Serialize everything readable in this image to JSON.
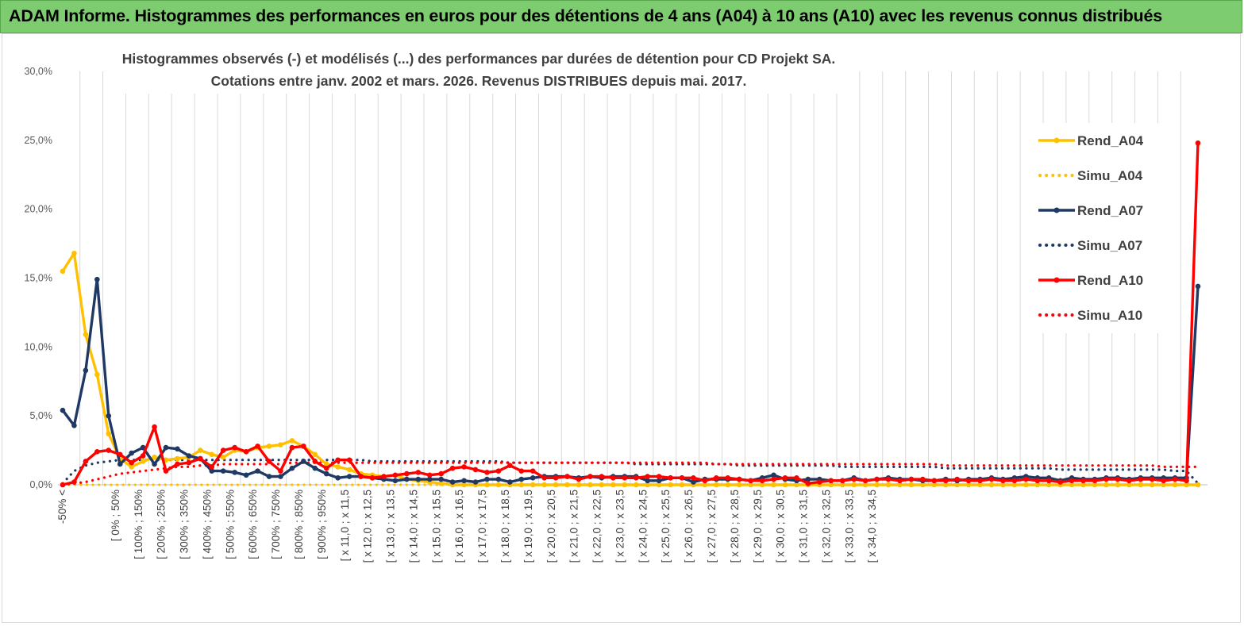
{
  "banner": {
    "title": "ADAM Informe. Histogrammes des performances en euros pour des détentions de 4 ans (A04) à 10 ans (A10) avec les revenus connus distribués"
  },
  "colors": {
    "banner_bg": "#7dcc70",
    "A04": "#ffc000",
    "A07": "#1f3864",
    "A10": "#ff0000",
    "grid": "#d9d9d9"
  },
  "chart_data": {
    "type": "line",
    "title_line1": "Histogrammes observés (-) et modélisés (...) des performances par durées de détention pour CD Projekt SA.",
    "title_line2": "Cotations entre janv. 2002 et mars. 2026. Revenus DISTRIBUES depuis mai. 2017.",
    "xlabel": "",
    "ylabel": "",
    "ylim": [
      0,
      30
    ],
    "y_ticks": [
      "0,0%",
      "5,0%",
      "10,0%",
      "15,0%",
      "20,0%",
      "25,0%",
      "30,0%"
    ],
    "grid": "vertical",
    "legend_position": "right",
    "x_tick_labels": [
      "-50% <",
      "[ 0% ; 50%",
      "[ 100% ; 150%",
      "[ 200% ; 250%",
      "[ 300% ; 350%",
      "[ 400% ; 450%",
      "[ 500% ; 550%",
      "[ 600% ; 650%",
      "[ 700% ; 750%",
      "[ 800% ; 850%",
      "[ 900% ; 950%",
      "[ x 11,0 ; x 11,5",
      "[ x 12,0 ; x 12,5",
      "[ x 13,0 ; x 13,5",
      "[ x 14,0 ; x 14,5",
      "[ x 15,0 ; x 15,5",
      "[ x 16,0 ; x 16,5",
      "[ x 17,0 ; x 17,5",
      "[ x 18,0 ; x 18,5",
      "[ x 19,0 ; x 19,5",
      "[ x 20,0 ; x 20,5",
      "[ x 21,0 ; x 21,5",
      "[ x 22,0 ; x 22,5",
      "[ x 23,0 ; x 23,5",
      "[ x 24,0 ; x 24,5",
      "[ x 25,0 ; x 25,5",
      "[ x 26,0 ; x 26,5",
      "[ x 27,0 ; x 27,5",
      "[ x 28,0 ; x 28,5",
      "[ x 29,0 ; x 29,5",
      "[ x 30,0 ; x 30,5",
      "[ x 31,0 ; x 31,5",
      "[ x 32,0 ; x 32,5",
      "[ x 33,0 ; x 33,5",
      "[ x 34,0 ; x 34,5"
    ],
    "series": [
      {
        "name": "Rend_A04",
        "style": "solid",
        "color": "#ffc000",
        "values": [
          15.5,
          16.8,
          10.9,
          8.0,
          3.7,
          1.9,
          1.3,
          1.7,
          2.0,
          1.8,
          1.9,
          2.0,
          2.5,
          2.2,
          2.0,
          2.5,
          2.4,
          2.7,
          2.8,
          2.9,
          3.2,
          2.8,
          2.2,
          1.5,
          1.3,
          1.1,
          0.8,
          0.7,
          0.6,
          0.7,
          0.4,
          0.3,
          0.2,
          0.1,
          0.0,
          0.0,
          0.0,
          0.0,
          0.0,
          0.0,
          0.0,
          0.0,
          0.0,
          0.0,
          0.0,
          0.0,
          0.0,
          0.0,
          0.0,
          0.0,
          0.0,
          0.0,
          0.0,
          0.0,
          0.0,
          0.0,
          0.0,
          0.0,
          0.0,
          0.0,
          0.0,
          0.0,
          0.0,
          0.0,
          0.0,
          0.0,
          0.0,
          0.0,
          0.0,
          0.0,
          0.0,
          0.0,
          0.0,
          0.0,
          0.0,
          0.0,
          0.0,
          0.0,
          0.0,
          0.0,
          0.0,
          0.0,
          0.0,
          0.0,
          0.0,
          0.0,
          0.0,
          0.0,
          0.0,
          0.0,
          0.0,
          0.0,
          0.0,
          0.0,
          0.0,
          0.0,
          0.0,
          0.0,
          0.0,
          0.0
        ]
      },
      {
        "name": "Simu_A04",
        "style": "dotted",
        "color": "#ffc000",
        "values": [
          0.0,
          0.0,
          0.0,
          0.0,
          0.0,
          0.0,
          0.0,
          0.0,
          0.0,
          0.0,
          0.0,
          0.0,
          0.0,
          0.0,
          0.0,
          0.0,
          0.0,
          0.0,
          0.0,
          0.0,
          0.0,
          0.0,
          0.0,
          0.0,
          0.0,
          0.0,
          0.0,
          0.0,
          0.0,
          0.0,
          0.0,
          0.0,
          0.0,
          0.0,
          0.0,
          0.0,
          0.0,
          0.0,
          0.0,
          0.0,
          0.0,
          0.0,
          0.0,
          0.0,
          0.0,
          0.0,
          0.0,
          0.0,
          0.0,
          0.0,
          0.0,
          0.0,
          0.0,
          0.0,
          0.0,
          0.0,
          0.0,
          0.0,
          0.0,
          0.0,
          0.0,
          0.0,
          0.0,
          0.0,
          0.0,
          0.0,
          0.0,
          0.0,
          0.0,
          0.0,
          0.0,
          0.0,
          0.0,
          0.0,
          0.0,
          0.0,
          0.0,
          0.0,
          0.0,
          0.0,
          0.0,
          0.0,
          0.0,
          0.0,
          0.0,
          0.0,
          0.0,
          0.0,
          0.0,
          0.0,
          0.0,
          0.0,
          0.0,
          0.0,
          0.0,
          0.0,
          0.0,
          0.0,
          0.0,
          0.0
        ]
      },
      {
        "name": "Rend_A07",
        "style": "solid",
        "color": "#1f3864",
        "values": [
          5.4,
          4.3,
          8.3,
          14.9,
          5.0,
          1.5,
          2.3,
          2.7,
          1.5,
          2.7,
          2.6,
          2.1,
          1.9,
          1.0,
          1.0,
          0.9,
          0.7,
          1.0,
          0.6,
          0.6,
          1.2,
          1.7,
          1.2,
          0.8,
          0.5,
          0.6,
          0.6,
          0.5,
          0.4,
          0.3,
          0.4,
          0.4,
          0.4,
          0.4,
          0.2,
          0.3,
          0.2,
          0.4,
          0.4,
          0.2,
          0.4,
          0.5,
          0.6,
          0.6,
          0.6,
          0.5,
          0.6,
          0.5,
          0.6,
          0.6,
          0.6,
          0.3,
          0.3,
          0.5,
          0.5,
          0.2,
          0.4,
          0.4,
          0.4,
          0.4,
          0.3,
          0.5,
          0.7,
          0.4,
          0.3,
          0.4,
          0.4,
          0.3,
          0.3,
          0.5,
          0.3,
          0.4,
          0.5,
          0.4,
          0.4,
          0.3,
          0.3,
          0.4,
          0.3,
          0.4,
          0.4,
          0.5,
          0.4,
          0.5,
          0.6,
          0.5,
          0.5,
          0.3,
          0.5,
          0.4,
          0.4,
          0.5,
          0.5,
          0.4,
          0.5,
          0.5,
          0.5,
          0.5,
          0.5,
          14.4
        ]
      },
      {
        "name": "Simu_A07",
        "style": "dotted",
        "color": "#1f3864",
        "values": [
          0.1,
          1.0,
          1.4,
          1.6,
          1.7,
          1.8,
          1.8,
          1.8,
          1.8,
          1.8,
          1.8,
          1.8,
          1.8,
          1.8,
          1.8,
          1.8,
          1.8,
          1.8,
          1.8,
          1.8,
          1.8,
          1.8,
          1.8,
          1.8,
          1.8,
          1.8,
          1.8,
          1.7,
          1.7,
          1.7,
          1.7,
          1.7,
          1.7,
          1.7,
          1.7,
          1.7,
          1.7,
          1.7,
          1.7,
          1.6,
          1.6,
          1.6,
          1.6,
          1.6,
          1.6,
          1.6,
          1.6,
          1.6,
          1.6,
          1.6,
          1.5,
          1.5,
          1.5,
          1.5,
          1.5,
          1.5,
          1.5,
          1.5,
          1.5,
          1.4,
          1.4,
          1.4,
          1.4,
          1.4,
          1.4,
          1.4,
          1.4,
          1.4,
          1.3,
          1.3,
          1.3,
          1.3,
          1.3,
          1.3,
          1.3,
          1.3,
          1.3,
          1.2,
          1.2,
          1.2,
          1.2,
          1.2,
          1.2,
          1.2,
          1.2,
          1.2,
          1.2,
          1.1,
          1.1,
          1.1,
          1.1,
          1.1,
          1.1,
          1.1,
          1.1,
          1.1,
          1.1,
          1.0,
          1.0,
          0.1
        ]
      },
      {
        "name": "Rend_A10",
        "style": "solid",
        "color": "#ff0000",
        "values": [
          0.0,
          0.2,
          1.7,
          2.4,
          2.5,
          2.2,
          1.6,
          2.1,
          4.2,
          1.0,
          1.5,
          1.6,
          1.9,
          1.3,
          2.5,
          2.7,
          2.4,
          2.8,
          1.7,
          1.0,
          2.7,
          2.8,
          1.7,
          1.2,
          1.8,
          1.8,
          0.6,
          0.5,
          0.6,
          0.7,
          0.8,
          0.9,
          0.7,
          0.8,
          1.2,
          1.3,
          1.1,
          0.9,
          1.0,
          1.4,
          1.0,
          1.0,
          0.5,
          0.5,
          0.6,
          0.4,
          0.6,
          0.6,
          0.5,
          0.5,
          0.5,
          0.6,
          0.6,
          0.5,
          0.5,
          0.5,
          0.3,
          0.5,
          0.5,
          0.4,
          0.3,
          0.3,
          0.4,
          0.5,
          0.5,
          0.1,
          0.2,
          0.3,
          0.3,
          0.4,
          0.3,
          0.4,
          0.4,
          0.3,
          0.4,
          0.4,
          0.3,
          0.3,
          0.4,
          0.3,
          0.3,
          0.4,
          0.3,
          0.3,
          0.4,
          0.3,
          0.3,
          0.2,
          0.3,
          0.3,
          0.3,
          0.4,
          0.4,
          0.3,
          0.4,
          0.4,
          0.3,
          0.4,
          0.3,
          24.8
        ]
      },
      {
        "name": "Simu_A10",
        "style": "dotted",
        "color": "#ff0000",
        "values": [
          0.0,
          0.1,
          0.2,
          0.4,
          0.6,
          0.8,
          0.9,
          1.0,
          1.1,
          1.2,
          1.3,
          1.3,
          1.4,
          1.4,
          1.5,
          1.5,
          1.5,
          1.5,
          1.5,
          1.5,
          1.6,
          1.6,
          1.6,
          1.6,
          1.6,
          1.6,
          1.6,
          1.6,
          1.6,
          1.6,
          1.6,
          1.6,
          1.6,
          1.6,
          1.6,
          1.6,
          1.6,
          1.6,
          1.6,
          1.6,
          1.6,
          1.6,
          1.6,
          1.6,
          1.6,
          1.6,
          1.6,
          1.6,
          1.6,
          1.6,
          1.6,
          1.6,
          1.6,
          1.6,
          1.6,
          1.6,
          1.6,
          1.5,
          1.5,
          1.5,
          1.5,
          1.5,
          1.5,
          1.5,
          1.5,
          1.5,
          1.5,
          1.5,
          1.5,
          1.5,
          1.5,
          1.5,
          1.5,
          1.5,
          1.5,
          1.5,
          1.5,
          1.4,
          1.4,
          1.4,
          1.4,
          1.4,
          1.4,
          1.4,
          1.4,
          1.4,
          1.4,
          1.4,
          1.4,
          1.4,
          1.4,
          1.4,
          1.4,
          1.4,
          1.4,
          1.4,
          1.3,
          1.3,
          1.3,
          1.3
        ]
      }
    ]
  }
}
